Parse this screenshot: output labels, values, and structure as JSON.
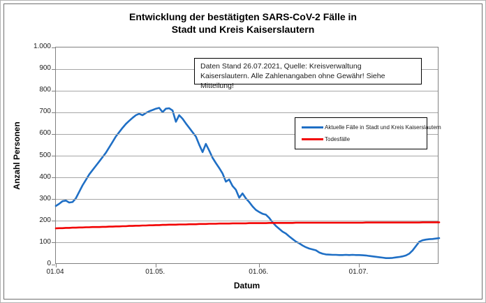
{
  "title": {
    "line1": "Entwicklung der bestätigten SARS-CoV-2 Fälle in",
    "line2": "Stadt und Kreis Kaiserslautern"
  },
  "annotation": {
    "line1": "Daten Stand 26.07.2021, Quelle: Kreisverwaltung",
    "line2": "Kaiserslautern. Alle Zahlenangaben ohne Gewähr! Siehe Mitteilung!"
  },
  "axes": {
    "y_title": "Anzahl Personen",
    "x_title": "Datum"
  },
  "legend": {
    "items": [
      {
        "label": "Aktuelle Fälle in Stadt und Kreis Kaiserslautern",
        "color": "#1f6fc5"
      },
      {
        "label": "Todesfälle",
        "color": "#f20000"
      }
    ]
  },
  "colors": {
    "series_blue": "#1f6fc5",
    "series_red": "#f20000",
    "gridline": "#a6a6a6",
    "plot_border": "#808080"
  },
  "chart_data": {
    "type": "line",
    "title": "Entwicklung der bestätigten SARS-CoV-2 Fälle in Stadt und Kreis Kaiserslautern",
    "xlabel": "Datum",
    "ylabel": "Anzahl Personen",
    "ylim": [
      0,
      1000
    ],
    "grid": "horizontal-only",
    "legend_position": "center-right",
    "x_start": "01.04.2021",
    "x_end": "25.07.2021",
    "n_points": 116,
    "y_ticks": [
      {
        "label": "0",
        "value": 0
      },
      {
        "label": "100",
        "value": 100
      },
      {
        "label": "200",
        "value": 200
      },
      {
        "label": "300",
        "value": 300
      },
      {
        "label": "400",
        "value": 400
      },
      {
        "label": "500",
        "value": 500
      },
      {
        "label": "600",
        "value": 600
      },
      {
        "label": "700",
        "value": 700
      },
      {
        "label": "800",
        "value": 800
      },
      {
        "label": "900",
        "value": 900
      },
      {
        "label": "1.000",
        "value": 1000
      }
    ],
    "x_ticks": [
      {
        "label": "01.04",
        "day": 0
      },
      {
        "label": "01.05.",
        "day": 30
      },
      {
        "label": "01.06.",
        "day": 61
      },
      {
        "label": "01.07.",
        "day": 91
      }
    ],
    "series": [
      {
        "name": "Aktuelle Fälle in Stadt und Kreis Kaiserslautern",
        "color": "#1f6fc5",
        "values": [
          270,
          280,
          292,
          295,
          286,
          288,
          305,
          335,
          365,
          390,
          415,
          435,
          455,
          475,
          495,
          515,
          540,
          565,
          590,
          610,
          630,
          648,
          662,
          676,
          688,
          695,
          688,
          698,
          706,
          712,
          718,
          722,
          702,
          718,
          720,
          710,
          658,
          688,
          672,
          650,
          630,
          610,
          590,
          552,
          518,
          556,
          525,
          492,
          468,
          445,
          420,
          382,
          392,
          362,
          345,
          308,
          328,
          305,
          288,
          268,
          252,
          242,
          234,
          230,
          215,
          195,
          178,
          165,
          152,
          143,
          130,
          118,
          106,
          98,
          88,
          80,
          74,
          70,
          66,
          56,
          50,
          47,
          46,
          45,
          45,
          44,
          44,
          45,
          44,
          45,
          44,
          44,
          43,
          42,
          40,
          38,
          36,
          34,
          32,
          30,
          30,
          31,
          33,
          35,
          38,
          42,
          50,
          65,
          85,
          105,
          112,
          115,
          117,
          118,
          120,
          122
        ]
      },
      {
        "name": "Todesfälle",
        "color": "#f20000",
        "values": [
          167,
          168,
          168,
          169,
          169,
          170,
          170,
          171,
          171,
          172,
          172,
          173,
          173,
          173,
          174,
          174,
          175,
          175,
          176,
          176,
          177,
          177,
          178,
          178,
          179,
          179,
          180,
          180,
          181,
          181,
          182,
          182,
          183,
          183,
          184,
          184,
          184,
          185,
          185,
          185,
          186,
          186,
          186,
          187,
          187,
          187,
          188,
          188,
          188,
          189,
          189,
          189,
          189,
          190,
          190,
          190,
          190,
          190,
          191,
          191,
          191,
          191,
          191,
          191,
          192,
          192,
          192,
          192,
          192,
          192,
          192,
          192,
          193,
          193,
          193,
          193,
          193,
          193,
          193,
          193,
          193,
          193,
          193,
          193,
          193,
          193,
          193,
          193,
          193,
          193,
          193,
          193,
          193,
          194,
          194,
          194,
          194,
          194,
          194,
          194,
          194,
          194,
          194,
          194,
          194,
          194,
          194,
          194,
          194,
          194,
          195,
          195,
          195,
          195,
          195,
          195
        ]
      }
    ]
  }
}
